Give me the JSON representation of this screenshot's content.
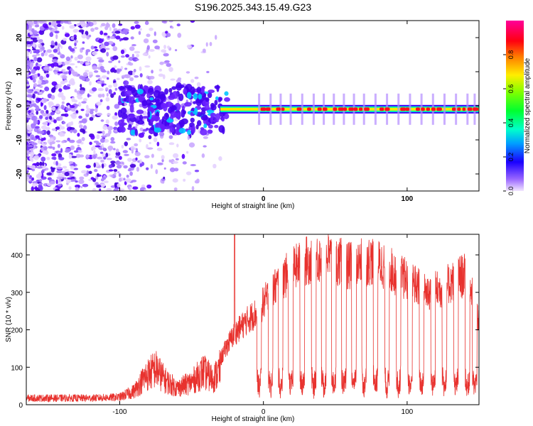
{
  "title": "S196.2025.343.15.49.G23",
  "colors": {
    "snr_line": "#e8322e",
    "frame": "#000000"
  },
  "chart_data": [
    {
      "type": "heatmap",
      "name": "spectrogram",
      "xlabel": "Height of straight line (km)",
      "ylabel": "Frequency (Hz)",
      "xlim": [
        -165,
        150
      ],
      "ylim": [
        -25,
        25
      ],
      "xticks": [
        -100,
        0,
        100
      ],
      "yticks": [
        20,
        10,
        0,
        -10,
        -20
      ],
      "colorbar": {
        "label": "Normalized spectral amplitude",
        "range": [
          0,
          1
        ],
        "ticks": [
          "0.0",
          "0.2",
          "0.4",
          "0.6",
          "0.8"
        ],
        "tick_values": [
          0,
          0.2,
          0.4,
          0.6,
          0.8
        ]
      },
      "description_values": {
        "noise_region_km": [
          -165,
          -30
        ],
        "carrier_track_start_km": -30,
        "carrier_frequency_hz": -1
      }
    },
    {
      "type": "line",
      "name": "snr",
      "xlabel": "Height of straight line (km)",
      "ylabel": "SNR (10 * v/v)",
      "xlim": [
        -165,
        150
      ],
      "ylim": [
        0,
        455
      ],
      "xticks": [
        -100,
        0,
        100
      ],
      "yticks": [
        0,
        100,
        200,
        300,
        400
      ],
      "envelope": [
        {
          "x": -165,
          "y": 22
        },
        {
          "x": -120,
          "y": 22
        },
        {
          "x": -100,
          "y": 25
        },
        {
          "x": -90,
          "y": 45
        },
        {
          "x": -82,
          "y": 95
        },
        {
          "x": -75,
          "y": 120
        },
        {
          "x": -68,
          "y": 80
        },
        {
          "x": -60,
          "y": 55
        },
        {
          "x": -50,
          "y": 75
        },
        {
          "x": -42,
          "y": 110
        },
        {
          "x": -35,
          "y": 85
        },
        {
          "x": -30,
          "y": 120
        },
        {
          "x": -25,
          "y": 160
        },
        {
          "x": -20,
          "y": 190
        },
        {
          "x": -15,
          "y": 210
        },
        {
          "x": -10,
          "y": 230
        },
        {
          "x": -5,
          "y": 245
        },
        {
          "x": 0,
          "y": 270
        },
        {
          "x": 5,
          "y": 300
        },
        {
          "x": 12,
          "y": 330
        },
        {
          "x": 20,
          "y": 360
        },
        {
          "x": 30,
          "y": 385
        },
        {
          "x": 45,
          "y": 395
        },
        {
          "x": 60,
          "y": 370
        },
        {
          "x": 75,
          "y": 385
        },
        {
          "x": 85,
          "y": 370
        },
        {
          "x": 95,
          "y": 345
        },
        {
          "x": 105,
          "y": 320
        },
        {
          "x": 115,
          "y": 300
        },
        {
          "x": 125,
          "y": 310
        },
        {
          "x": 135,
          "y": 340
        },
        {
          "x": 142,
          "y": 345
        },
        {
          "x": 150,
          "y": 220
        }
      ],
      "dip_positions_x": [
        -3,
        5,
        12,
        19,
        27,
        35,
        42,
        49,
        56,
        63,
        70,
        78,
        86,
        94,
        102,
        110,
        118,
        126,
        134,
        142,
        147
      ],
      "dip_floor_y": 60,
      "spike": {
        "x": -20,
        "y": 455
      }
    }
  ]
}
